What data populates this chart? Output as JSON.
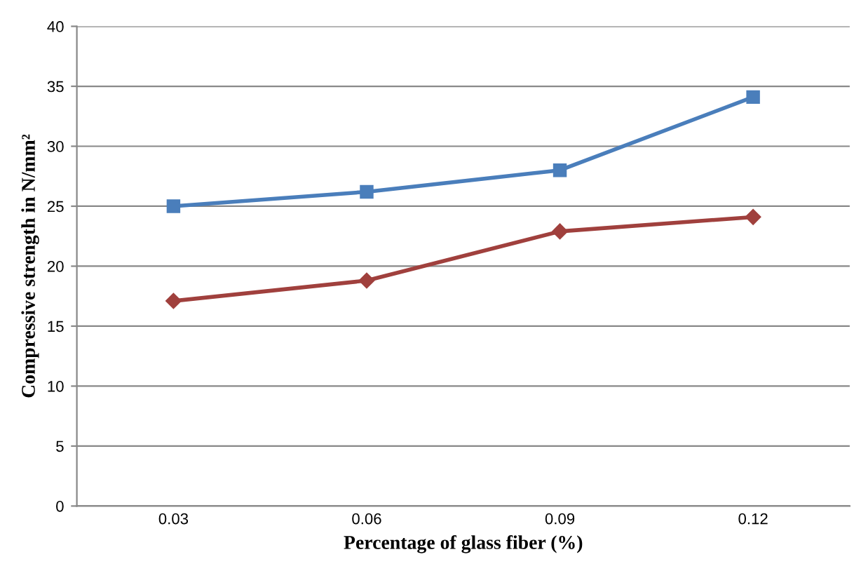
{
  "chart_data": {
    "type": "line",
    "xlabel": "Percentage of glass fiber (%)",
    "ylabel": "Compressive strength in N/mm²",
    "categories": [
      "0.03",
      "0.06",
      "0.09",
      "0.12"
    ],
    "series": [
      {
        "color": "#4a7ebb",
        "marker": "square",
        "values": [
          25.0,
          26.2,
          28.0,
          34.1
        ]
      },
      {
        "color": "#a0403d",
        "marker": "diamond",
        "values": [
          17.1,
          18.8,
          22.9,
          24.1
        ]
      }
    ],
    "ylim": [
      0,
      40
    ],
    "yticks": [
      0,
      5,
      10,
      15,
      20,
      25,
      30,
      35,
      40
    ],
    "grid": "y",
    "line_style": "solid"
  }
}
